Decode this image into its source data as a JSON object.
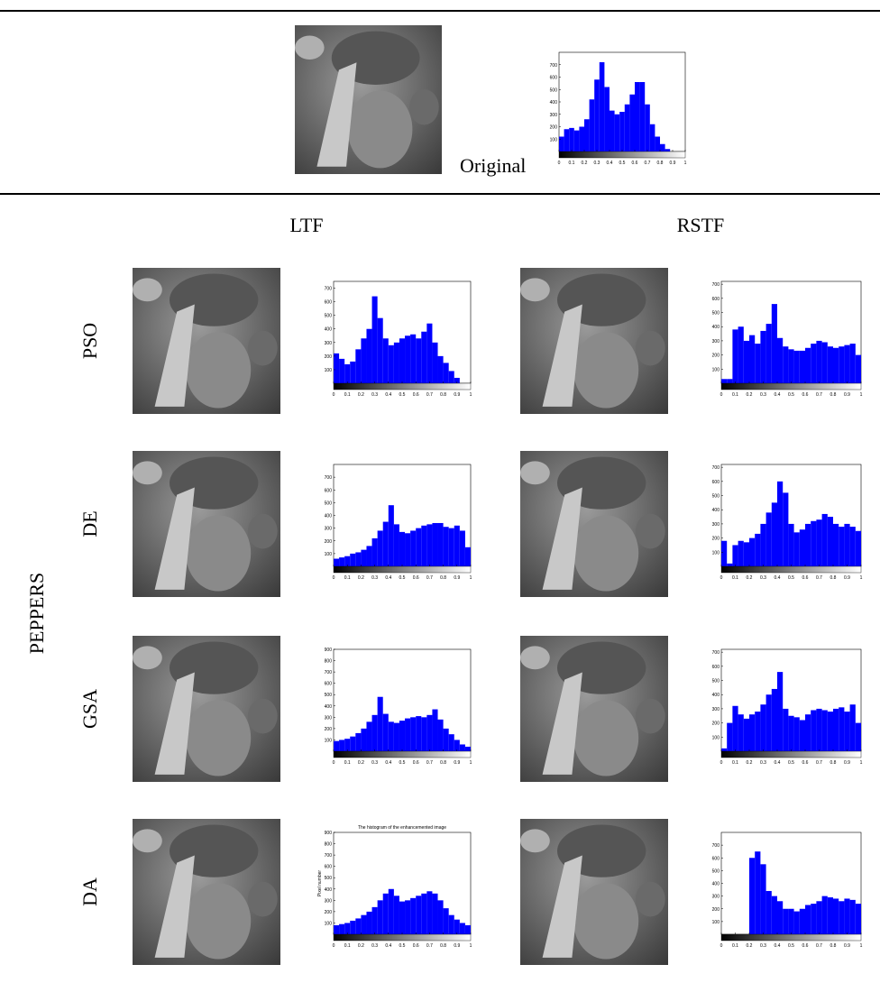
{
  "header": {
    "original_label": "Original"
  },
  "columns": [
    "LTF",
    "RSTF"
  ],
  "group": "PEPPERS",
  "rows": [
    "PSO",
    "DE",
    "GSA",
    "DA"
  ],
  "chart_data": [
    {
      "type": "histogram",
      "color": "#0000ff",
      "bins": [
        0,
        0.04,
        0.08,
        0.12,
        0.16,
        0.2,
        0.24,
        0.28,
        0.32,
        0.36,
        0.4,
        0.44,
        0.48,
        0.52,
        0.56,
        0.6,
        0.64,
        0.68,
        0.72,
        0.76,
        0.8,
        0.84,
        0.88,
        0.92,
        0.96,
        1
      ],
      "values": [
        120,
        180,
        190,
        170,
        200,
        260,
        420,
        580,
        720,
        520,
        330,
        300,
        320,
        380,
        460,
        560,
        560,
        380,
        220,
        120,
        60,
        20,
        0,
        0,
        0
      ],
      "xlim": [
        0,
        1
      ],
      "ylim": [
        0,
        800
      ],
      "xticks": [
        0,
        0.1,
        0.2,
        0.3,
        0.4,
        0.5,
        0.6,
        0.7,
        0.8,
        0.9,
        1
      ],
      "yticks": [
        100,
        200,
        300,
        400,
        500,
        600,
        700
      ]
    },
    {
      "type": "histogram",
      "color": "#0000ff",
      "bins": [
        0,
        0.04,
        0.08,
        0.12,
        0.16,
        0.2,
        0.24,
        0.28,
        0.32,
        0.36,
        0.4,
        0.44,
        0.48,
        0.52,
        0.56,
        0.6,
        0.64,
        0.68,
        0.72,
        0.76,
        0.8,
        0.84,
        0.88,
        0.92,
        0.96,
        1
      ],
      "values": [
        220,
        180,
        140,
        160,
        250,
        330,
        400,
        640,
        480,
        330,
        280,
        300,
        330,
        350,
        360,
        330,
        380,
        440,
        300,
        200,
        150,
        90,
        40,
        0,
        0
      ],
      "xlim": [
        0,
        1
      ],
      "ylim": [
        0,
        750
      ],
      "xticks": [
        0,
        0.1,
        0.2,
        0.3,
        0.4,
        0.5,
        0.6,
        0.7,
        0.8,
        0.9,
        1
      ],
      "yticks": [
        100,
        200,
        300,
        400,
        500,
        600,
        700
      ]
    },
    {
      "type": "histogram",
      "color": "#0000ff",
      "bins": [
        0,
        0.04,
        0.08,
        0.12,
        0.16,
        0.2,
        0.24,
        0.28,
        0.32,
        0.36,
        0.4,
        0.44,
        0.48,
        0.52,
        0.56,
        0.6,
        0.64,
        0.68,
        0.72,
        0.76,
        0.8,
        0.84,
        0.88,
        0.92,
        0.96,
        1
      ],
      "values": [
        30,
        30,
        380,
        400,
        300,
        340,
        280,
        370,
        420,
        560,
        320,
        260,
        240,
        230,
        230,
        250,
        280,
        300,
        290,
        260,
        250,
        260,
        270,
        280,
        200
      ],
      "xlim": [
        0,
        1
      ],
      "ylim": [
        0,
        720
      ],
      "xticks": [
        0,
        0.1,
        0.2,
        0.3,
        0.4,
        0.5,
        0.6,
        0.7,
        0.8,
        0.9,
        1
      ],
      "yticks": [
        100,
        200,
        300,
        400,
        500,
        600,
        700
      ]
    },
    {
      "type": "histogram",
      "color": "#0000ff",
      "bins": [
        0,
        0.04,
        0.08,
        0.12,
        0.16,
        0.2,
        0.24,
        0.28,
        0.32,
        0.36,
        0.4,
        0.44,
        0.48,
        0.52,
        0.56,
        0.6,
        0.64,
        0.68,
        0.72,
        0.76,
        0.8,
        0.84,
        0.88,
        0.92,
        0.96,
        1
      ],
      "values": [
        60,
        70,
        80,
        100,
        110,
        130,
        160,
        220,
        280,
        350,
        480,
        330,
        270,
        260,
        280,
        300,
        320,
        330,
        340,
        340,
        310,
        300,
        320,
        280,
        150
      ],
      "xlim": [
        0,
        1
      ],
      "ylim": [
        0,
        800
      ],
      "xticks": [
        0,
        0.1,
        0.2,
        0.3,
        0.4,
        0.5,
        0.6,
        0.7,
        0.8,
        0.9,
        1
      ],
      "yticks": [
        100,
        200,
        300,
        400,
        500,
        600,
        700
      ]
    },
    {
      "type": "histogram",
      "color": "#0000ff",
      "bins": [
        0,
        0.04,
        0.08,
        0.12,
        0.16,
        0.2,
        0.24,
        0.28,
        0.32,
        0.36,
        0.4,
        0.44,
        0.48,
        0.52,
        0.56,
        0.6,
        0.64,
        0.68,
        0.72,
        0.76,
        0.8,
        0.84,
        0.88,
        0.92,
        0.96,
        1
      ],
      "values": [
        180,
        20,
        150,
        180,
        170,
        200,
        230,
        300,
        380,
        450,
        600,
        520,
        300,
        240,
        260,
        300,
        320,
        330,
        370,
        350,
        300,
        280,
        300,
        280,
        250
      ],
      "xlim": [
        0,
        1
      ],
      "ylim": [
        0,
        720
      ],
      "xticks": [
        0,
        0.1,
        0.2,
        0.3,
        0.4,
        0.5,
        0.6,
        0.7,
        0.8,
        0.9,
        1
      ],
      "yticks": [
        100,
        200,
        300,
        400,
        500,
        600,
        700
      ]
    },
    {
      "type": "histogram",
      "color": "#0000ff",
      "bins": [
        0,
        0.04,
        0.08,
        0.12,
        0.16,
        0.2,
        0.24,
        0.28,
        0.32,
        0.36,
        0.4,
        0.44,
        0.48,
        0.52,
        0.56,
        0.6,
        0.64,
        0.68,
        0.72,
        0.76,
        0.8,
        0.84,
        0.88,
        0.92,
        0.96,
        1
      ],
      "values": [
        90,
        100,
        110,
        130,
        160,
        200,
        260,
        320,
        480,
        330,
        260,
        250,
        270,
        290,
        300,
        310,
        300,
        320,
        370,
        280,
        200,
        150,
        100,
        60,
        40
      ],
      "xlim": [
        0,
        1
      ],
      "ylim": [
        0,
        900
      ],
      "xticks": [
        0,
        0.1,
        0.2,
        0.3,
        0.4,
        0.5,
        0.6,
        0.7,
        0.8,
        0.9,
        1
      ],
      "yticks": [
        100,
        200,
        300,
        400,
        500,
        600,
        700,
        800,
        900
      ]
    },
    {
      "type": "histogram",
      "color": "#0000ff",
      "bins": [
        0,
        0.04,
        0.08,
        0.12,
        0.16,
        0.2,
        0.24,
        0.28,
        0.32,
        0.36,
        0.4,
        0.44,
        0.48,
        0.52,
        0.56,
        0.6,
        0.64,
        0.68,
        0.72,
        0.76,
        0.8,
        0.84,
        0.88,
        0.92,
        0.96,
        1
      ],
      "values": [
        20,
        200,
        320,
        260,
        230,
        260,
        280,
        330,
        400,
        440,
        560,
        300,
        250,
        240,
        220,
        260,
        290,
        300,
        290,
        280,
        300,
        310,
        280,
        330,
        200
      ],
      "xlim": [
        0,
        1
      ],
      "ylim": [
        0,
        720
      ],
      "xticks": [
        0,
        0.1,
        0.2,
        0.3,
        0.4,
        0.5,
        0.6,
        0.7,
        0.8,
        0.9,
        1
      ],
      "yticks": [
        100,
        200,
        300,
        400,
        500,
        600,
        700
      ]
    },
    {
      "type": "histogram",
      "color": "#0000ff",
      "title": "The histogram of the enhancemented image",
      "y_label": "Pixel number",
      "bins": [
        0,
        0.04,
        0.08,
        0.12,
        0.16,
        0.2,
        0.24,
        0.28,
        0.32,
        0.36,
        0.4,
        0.44,
        0.48,
        0.52,
        0.56,
        0.6,
        0.64,
        0.68,
        0.72,
        0.76,
        0.8,
        0.84,
        0.88,
        0.92,
        0.96,
        1
      ],
      "values": [
        80,
        90,
        100,
        120,
        140,
        170,
        200,
        240,
        300,
        360,
        400,
        340,
        290,
        300,
        320,
        340,
        360,
        380,
        360,
        300,
        230,
        170,
        130,
        100,
        80
      ],
      "xlim": [
        0,
        1
      ],
      "ylim": [
        0,
        900
      ],
      "xticks": [
        0,
        0.1,
        0.2,
        0.3,
        0.4,
        0.5,
        0.6,
        0.7,
        0.8,
        0.9,
        1
      ],
      "yticks": [
        100,
        200,
        300,
        400,
        500,
        600,
        700,
        800,
        900
      ]
    },
    {
      "type": "histogram",
      "color": "#0000ff",
      "bins": [
        0,
        0.04,
        0.08,
        0.12,
        0.16,
        0.2,
        0.24,
        0.28,
        0.32,
        0.36,
        0.4,
        0.44,
        0.48,
        0.52,
        0.56,
        0.6,
        0.64,
        0.68,
        0.72,
        0.76,
        0.8,
        0.84,
        0.88,
        0.92,
        0.96,
        1
      ],
      "values": [
        0,
        0,
        0,
        0,
        0,
        600,
        650,
        550,
        340,
        300,
        260,
        200,
        200,
        180,
        200,
        230,
        240,
        260,
        300,
        290,
        280,
        260,
        280,
        270,
        240
      ],
      "xlim": [
        0,
        1
      ],
      "ylim": [
        0,
        800
      ],
      "xticks": [
        0,
        0.1,
        0.2,
        0.3,
        0.4,
        0.5,
        0.6,
        0.7,
        0.8,
        0.9,
        1
      ],
      "yticks": [
        100,
        200,
        300,
        400,
        500,
        600,
        700
      ]
    }
  ]
}
